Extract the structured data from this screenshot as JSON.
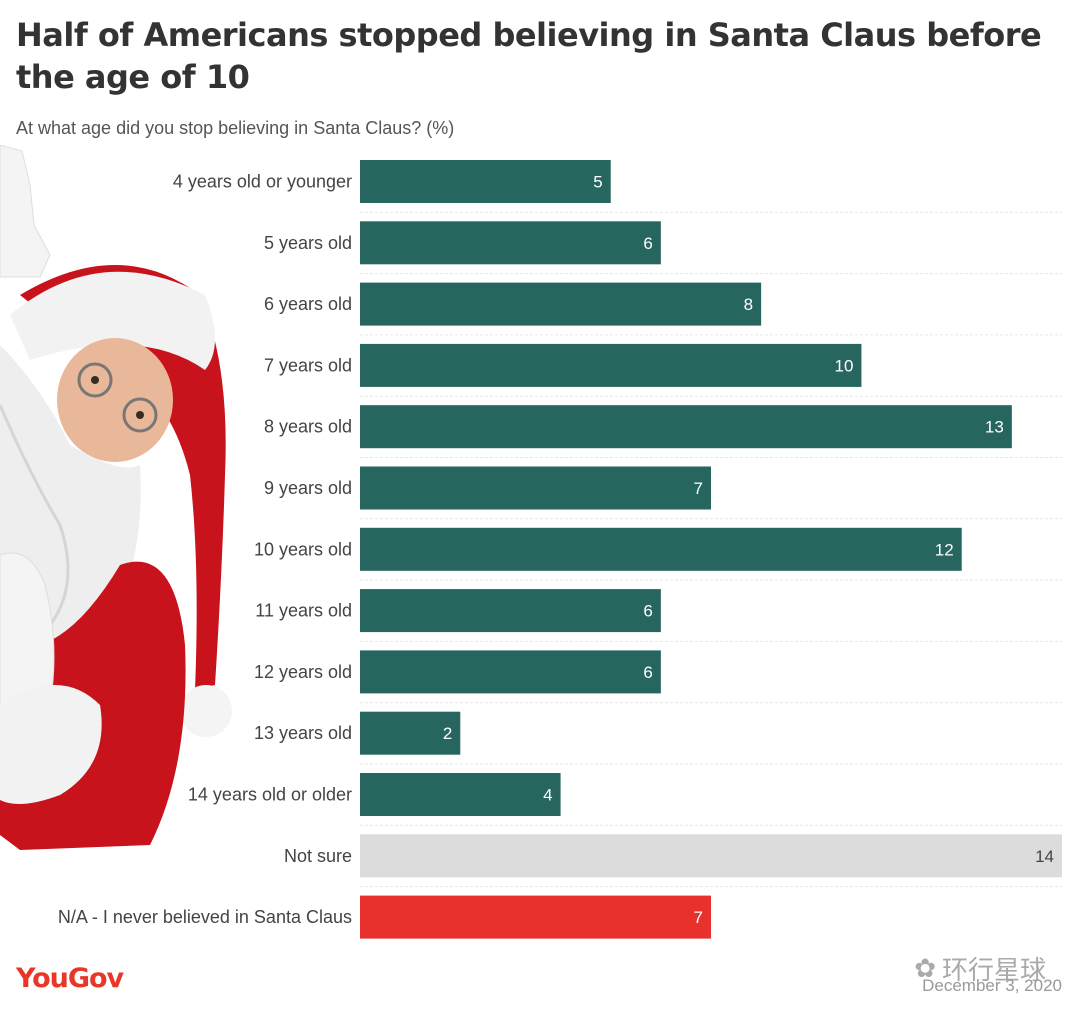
{
  "header": {
    "title": "Half of Americans stopped believing in Santa Claus before the age of 10",
    "subtitle": "At what age did you stop believing in Santa Claus? (%)"
  },
  "footer": {
    "logo": "YouGov",
    "date": "December 3, 2020",
    "watermark": "环行星球"
  },
  "colors": {
    "main_bar": "#27655f",
    "not_sure_bar": "#dcdcdc",
    "never_bar": "#e8302d",
    "logo": "#e8372a",
    "value_text_light": "#ffffff",
    "value_text_dark": "#444444"
  },
  "chart_data": {
    "type": "bar",
    "orientation": "horizontal",
    "categories": [
      "4 years old or younger",
      "5 years old",
      "6 years old",
      "7 years old",
      "8 years old",
      "9 years old",
      "10 years old",
      "11 years old",
      "12 years old",
      "13 years old",
      "14 years old or older",
      "Not sure",
      "N/A - I never believed in Santa Claus"
    ],
    "values": [
      5,
      6,
      8,
      10,
      13,
      7,
      12,
      6,
      6,
      2,
      4,
      14,
      7
    ],
    "bar_colors": [
      "main",
      "main",
      "main",
      "main",
      "main",
      "main",
      "main",
      "main",
      "main",
      "main",
      "main",
      "not_sure",
      "never"
    ],
    "data_labels": true,
    "grid": false,
    "xlim": [
      0,
      14
    ]
  }
}
